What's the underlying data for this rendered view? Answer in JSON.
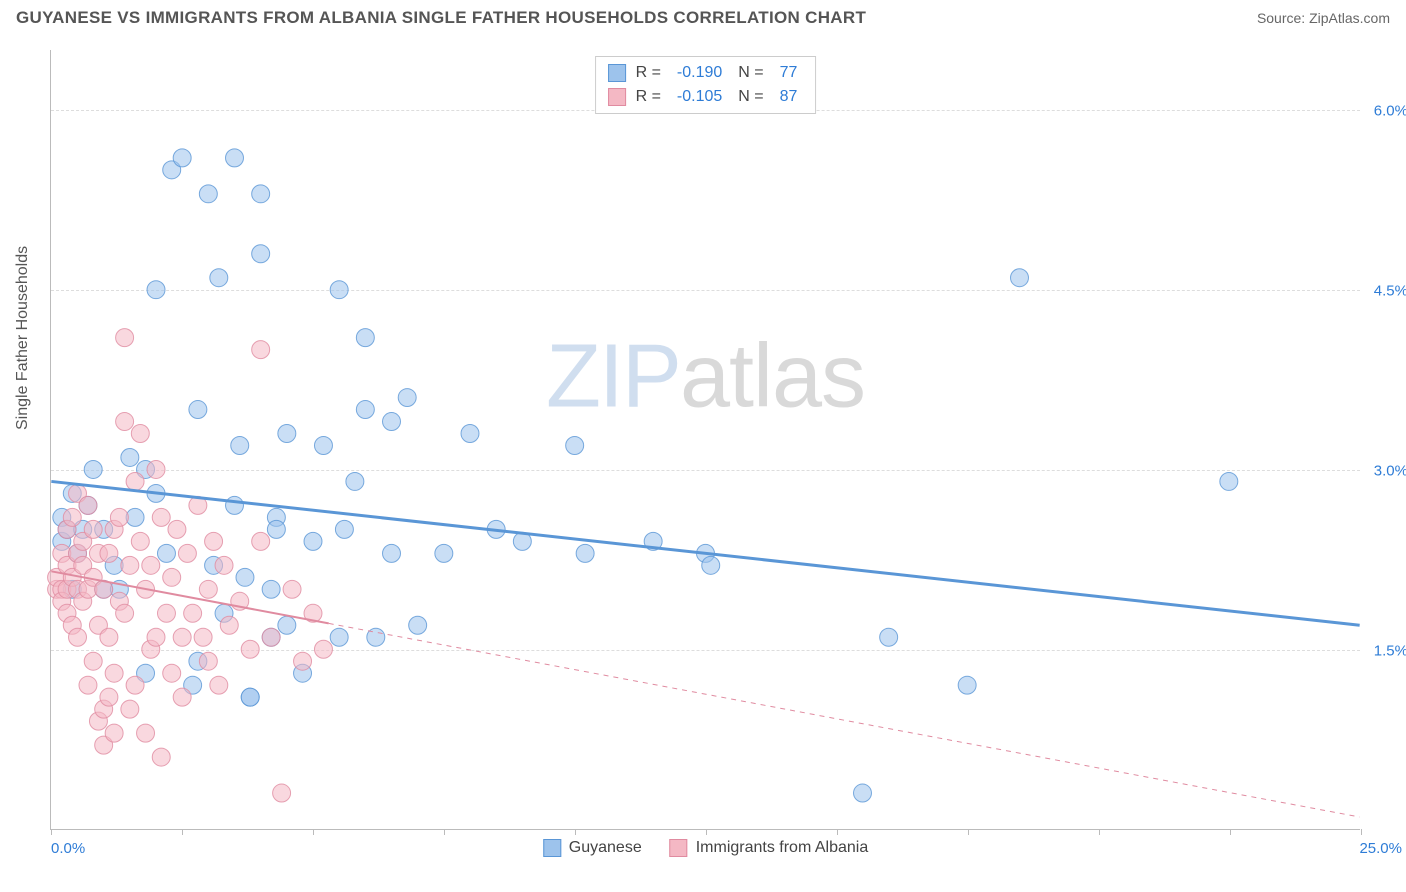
{
  "header": {
    "title": "GUYANESE VS IMMIGRANTS FROM ALBANIA SINGLE FATHER HOUSEHOLDS CORRELATION CHART",
    "source_prefix": "Source: ",
    "source_name": "ZipAtlas.com"
  },
  "watermark": {
    "zip": "ZIP",
    "atlas": "atlas"
  },
  "chart": {
    "type": "scatter",
    "ylabel": "Single Father Households",
    "xlim": [
      0,
      25
    ],
    "ylim": [
      0,
      6.5
    ],
    "yticks": [
      1.5,
      3.0,
      4.5,
      6.0
    ],
    "ytick_labels": [
      "1.5%",
      "3.0%",
      "4.5%",
      "6.0%"
    ],
    "xticks": [
      0,
      2.5,
      5,
      7.5,
      10,
      12.5,
      15,
      17.5,
      20,
      22.5,
      25
    ],
    "xlabel_min": "0.0%",
    "xlabel_max": "25.0%",
    "grid_color": "#dddddd",
    "axis_color": "#bbbbbb",
    "background_color": "#ffffff",
    "tick_label_color": "#2e7cd6",
    "marker_radius": 9,
    "marker_opacity": 0.55,
    "marker_stroke_opacity": 0.8,
    "series": [
      {
        "name": "Guyanese",
        "color_fill": "#9dc3ec",
        "color_stroke": "#5a96d6",
        "R": "-0.190",
        "N": "77",
        "trend": {
          "x1": 0,
          "y1": 2.9,
          "x2": 25,
          "y2": 1.7,
          "solid_until_x": 25,
          "width": 3
        },
        "points": [
          [
            0.2,
            2.6
          ],
          [
            0.2,
            2.4
          ],
          [
            0.3,
            2.5
          ],
          [
            0.4,
            2.0
          ],
          [
            0.4,
            2.8
          ],
          [
            0.5,
            2.3
          ],
          [
            0.6,
            2.5
          ],
          [
            0.7,
            2.7
          ],
          [
            0.8,
            3.0
          ],
          [
            1.0,
            2.0
          ],
          [
            1.0,
            2.5
          ],
          [
            1.2,
            2.2
          ],
          [
            1.3,
            2.0
          ],
          [
            1.5,
            3.1
          ],
          [
            1.6,
            2.6
          ],
          [
            1.8,
            1.3
          ],
          [
            1.8,
            3.0
          ],
          [
            2.0,
            2.8
          ],
          [
            2.0,
            4.5
          ],
          [
            2.2,
            2.3
          ],
          [
            2.3,
            5.5
          ],
          [
            2.5,
            5.6
          ],
          [
            2.7,
            1.2
          ],
          [
            2.8,
            1.4
          ],
          [
            2.8,
            3.5
          ],
          [
            3.0,
            5.3
          ],
          [
            3.1,
            2.2
          ],
          [
            3.2,
            4.6
          ],
          [
            3.3,
            1.8
          ],
          [
            3.5,
            5.6
          ],
          [
            3.5,
            2.7
          ],
          [
            3.6,
            3.2
          ],
          [
            3.7,
            2.1
          ],
          [
            3.8,
            1.1
          ],
          [
            3.8,
            1.1
          ],
          [
            4.0,
            5.3
          ],
          [
            4.0,
            4.8
          ],
          [
            4.2,
            2.0
          ],
          [
            4.2,
            1.6
          ],
          [
            4.3,
            2.6
          ],
          [
            4.3,
            2.5
          ],
          [
            4.5,
            3.3
          ],
          [
            4.5,
            1.7
          ],
          [
            4.8,
            1.3
          ],
          [
            5.0,
            2.4
          ],
          [
            5.2,
            3.2
          ],
          [
            5.5,
            4.5
          ],
          [
            5.5,
            1.6
          ],
          [
            5.6,
            2.5
          ],
          [
            5.8,
            2.9
          ],
          [
            6.0,
            4.1
          ],
          [
            6.0,
            3.5
          ],
          [
            6.2,
            1.6
          ],
          [
            6.5,
            3.4
          ],
          [
            6.5,
            2.3
          ],
          [
            6.8,
            3.6
          ],
          [
            7.0,
            1.7
          ],
          [
            7.5,
            2.3
          ],
          [
            8.0,
            3.3
          ],
          [
            8.5,
            2.5
          ],
          [
            9.0,
            2.4
          ],
          [
            10.0,
            3.2
          ],
          [
            10.2,
            2.3
          ],
          [
            11.5,
            2.4
          ],
          [
            12.5,
            2.3
          ],
          [
            12.6,
            2.2
          ],
          [
            15.5,
            0.3
          ],
          [
            16.0,
            1.6
          ],
          [
            17.5,
            1.2
          ],
          [
            18.5,
            4.6
          ],
          [
            22.5,
            2.9
          ]
        ]
      },
      {
        "name": "Immigrants from Albania",
        "color_fill": "#f4b8c4",
        "color_stroke": "#e08ba0",
        "R": "-0.105",
        "N": "87",
        "trend": {
          "x1": 0,
          "y1": 2.15,
          "x2": 25,
          "y2": 0.1,
          "solid_until_x": 5.3,
          "width": 2
        },
        "points": [
          [
            0.1,
            2.0
          ],
          [
            0.1,
            2.1
          ],
          [
            0.2,
            2.3
          ],
          [
            0.2,
            2.0
          ],
          [
            0.2,
            1.9
          ],
          [
            0.3,
            2.5
          ],
          [
            0.3,
            2.2
          ],
          [
            0.3,
            1.8
          ],
          [
            0.3,
            2.0
          ],
          [
            0.4,
            2.6
          ],
          [
            0.4,
            1.7
          ],
          [
            0.4,
            2.1
          ],
          [
            0.5,
            2.8
          ],
          [
            0.5,
            1.6
          ],
          [
            0.5,
            2.3
          ],
          [
            0.5,
            2.0
          ],
          [
            0.6,
            2.4
          ],
          [
            0.6,
            1.9
          ],
          [
            0.6,
            2.2
          ],
          [
            0.7,
            2.7
          ],
          [
            0.7,
            1.2
          ],
          [
            0.7,
            2.0
          ],
          [
            0.8,
            1.4
          ],
          [
            0.8,
            2.1
          ],
          [
            0.8,
            2.5
          ],
          [
            0.9,
            1.7
          ],
          [
            0.9,
            2.3
          ],
          [
            0.9,
            0.9
          ],
          [
            1.0,
            1.0
          ],
          [
            1.0,
            0.7
          ],
          [
            1.0,
            2.0
          ],
          [
            1.1,
            2.3
          ],
          [
            1.1,
            1.6
          ],
          [
            1.1,
            1.1
          ],
          [
            1.2,
            2.5
          ],
          [
            1.2,
            1.3
          ],
          [
            1.2,
            0.8
          ],
          [
            1.3,
            1.9
          ],
          [
            1.3,
            2.6
          ],
          [
            1.4,
            4.1
          ],
          [
            1.4,
            1.8
          ],
          [
            1.4,
            3.4
          ],
          [
            1.5,
            1.0
          ],
          [
            1.5,
            2.2
          ],
          [
            1.6,
            2.9
          ],
          [
            1.6,
            1.2
          ],
          [
            1.7,
            3.3
          ],
          [
            1.7,
            2.4
          ],
          [
            1.8,
            0.8
          ],
          [
            1.8,
            2.0
          ],
          [
            1.9,
            1.5
          ],
          [
            1.9,
            2.2
          ],
          [
            2.0,
            3.0
          ],
          [
            2.0,
            1.6
          ],
          [
            2.1,
            2.6
          ],
          [
            2.1,
            0.6
          ],
          [
            2.2,
            1.8
          ],
          [
            2.3,
            2.1
          ],
          [
            2.3,
            1.3
          ],
          [
            2.4,
            2.5
          ],
          [
            2.5,
            1.6
          ],
          [
            2.5,
            1.1
          ],
          [
            2.6,
            2.3
          ],
          [
            2.7,
            1.8
          ],
          [
            2.8,
            2.7
          ],
          [
            2.9,
            1.6
          ],
          [
            3.0,
            2.0
          ],
          [
            3.0,
            1.4
          ],
          [
            3.1,
            2.4
          ],
          [
            3.2,
            1.2
          ],
          [
            3.3,
            2.2
          ],
          [
            3.4,
            1.7
          ],
          [
            3.6,
            1.9
          ],
          [
            3.8,
            1.5
          ],
          [
            4.0,
            2.4
          ],
          [
            4.0,
            4.0
          ],
          [
            4.2,
            1.6
          ],
          [
            4.4,
            0.3
          ],
          [
            4.6,
            2.0
          ],
          [
            4.8,
            1.4
          ],
          [
            5.0,
            1.8
          ],
          [
            5.2,
            1.5
          ]
        ]
      }
    ]
  },
  "legend": {
    "items": [
      {
        "label": "Guyanese",
        "fill": "#9dc3ec",
        "stroke": "#5a96d6"
      },
      {
        "label": "Immigrants from Albania",
        "fill": "#f4b8c4",
        "stroke": "#e08ba0"
      }
    ]
  },
  "stats_labels": {
    "R": "R =",
    "N": "N ="
  }
}
